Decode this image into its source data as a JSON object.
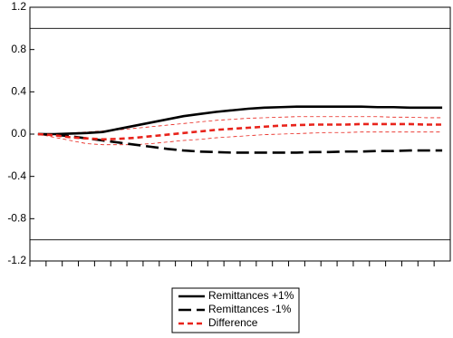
{
  "chart_data": {
    "type": "line",
    "categories": [
      null,
      null,
      null,
      null,
      null,
      null,
      null,
      null,
      null,
      null,
      null,
      null,
      null,
      null,
      null,
      null,
      null,
      null,
      null,
      null,
      null,
      null,
      null,
      null,
      null,
      null
    ],
    "series": [
      {
        "name": "Remittances +1%",
        "color": "#000000",
        "dash": "solid",
        "values": [
          0,
          0,
          0.005,
          0.01,
          0.02,
          0.05,
          0.08,
          0.11,
          0.14,
          0.17,
          0.19,
          0.21,
          0.225,
          0.24,
          0.25,
          0.255,
          0.26,
          0.26,
          0.26,
          0.26,
          0.26,
          0.255,
          0.255,
          0.25,
          0.25,
          0.25
        ]
      },
      {
        "name": "Remittances -1%",
        "color": "#000000",
        "dash": "long",
        "values": [
          0,
          -0.005,
          -0.02,
          -0.04,
          -0.06,
          -0.08,
          -0.1,
          -0.12,
          -0.14,
          -0.155,
          -0.165,
          -0.17,
          -0.175,
          -0.175,
          -0.175,
          -0.175,
          -0.175,
          -0.17,
          -0.17,
          -0.165,
          -0.165,
          -0.16,
          -0.16,
          -0.155,
          -0.155,
          -0.155
        ]
      },
      {
        "name": "Difference",
        "color": "#e8231b",
        "dash": "short",
        "values": [
          0,
          -0.01,
          -0.03,
          -0.04,
          -0.05,
          -0.045,
          -0.035,
          -0.02,
          -0.005,
          0.01,
          0.025,
          0.04,
          0.05,
          0.06,
          0.07,
          0.08,
          0.085,
          0.09,
          0.09,
          0.09,
          0.095,
          0.095,
          0.095,
          0.095,
          0.09,
          0.09
        ]
      }
    ],
    "confidence_band": {
      "color": "#e8231b",
      "upper": [
        0,
        0.005,
        0.01,
        0.02,
        0.03,
        0.04,
        0.055,
        0.07,
        0.085,
        0.1,
        0.115,
        0.13,
        0.14,
        0.15,
        0.155,
        0.16,
        0.165,
        0.165,
        0.165,
        0.165,
        0.165,
        0.165,
        0.16,
        0.16,
        0.155,
        0.155
      ],
      "lower": [
        0,
        -0.03,
        -0.06,
        -0.09,
        -0.1,
        -0.1,
        -0.1,
        -0.09,
        -0.075,
        -0.06,
        -0.05,
        -0.035,
        -0.025,
        -0.015,
        -0.005,
        0,
        0.005,
        0.01,
        0.015,
        0.015,
        0.02,
        0.02,
        0.02,
        0.02,
        0.02,
        0.02
      ]
    },
    "hlines": [
      1,
      -1
    ],
    "ylim": [
      -1.2,
      1.2
    ],
    "yticks": [
      -1.2,
      -0.8,
      -0.4,
      {
        "value": 0,
        "label": "0.0"
      },
      0.4,
      0.8,
      1.2
    ]
  }
}
